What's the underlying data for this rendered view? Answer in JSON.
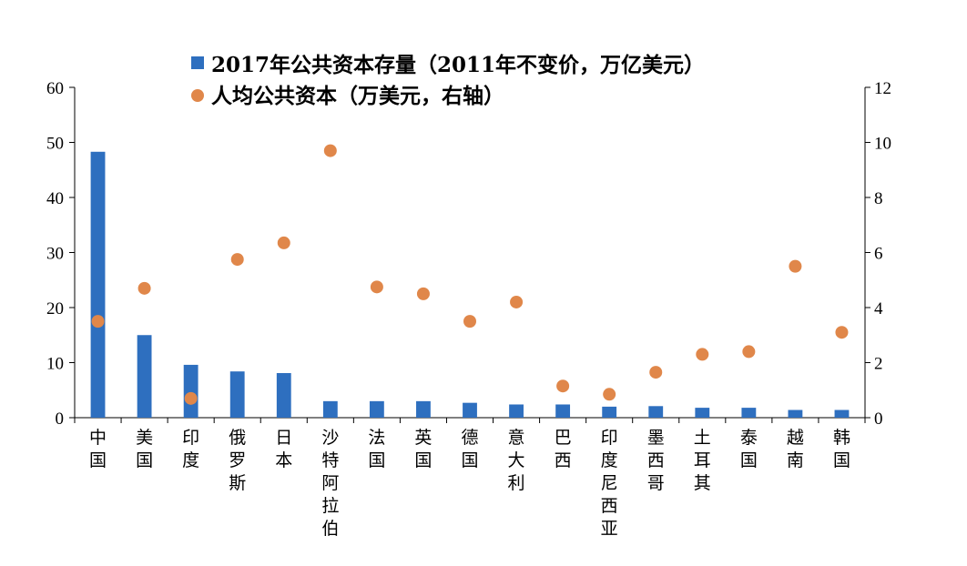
{
  "chart_data": {
    "type": "bar",
    "categories": [
      "中国",
      "美国",
      "印度",
      "俄罗斯",
      "日本",
      "沙特阿拉伯",
      "法国",
      "英国",
      "德国",
      "意大利",
      "巴西",
      "印度尼西亚",
      "墨西哥",
      "土耳其",
      "泰国",
      "越南",
      "韩国"
    ],
    "series": [
      {
        "name": "2017年公共资本存量（2011年不变价，万亿美元）",
        "kind": "bar",
        "axis": "left",
        "color": "#2e6fbf",
        "values": [
          48.3,
          15.0,
          9.6,
          8.4,
          8.1,
          3.0,
          3.0,
          3.0,
          2.7,
          2.4,
          2.4,
          2.0,
          2.1,
          1.8,
          1.8,
          1.4,
          1.4
        ]
      },
      {
        "name": "人均公共资本（万美元，右轴）",
        "kind": "scatter",
        "axis": "right",
        "color": "#e0874a",
        "values": [
          3.5,
          4.7,
          0.7,
          5.75,
          6.35,
          9.7,
          4.75,
          4.5,
          3.5,
          4.2,
          1.15,
          0.85,
          1.65,
          2.3,
          2.4,
          5.5,
          3.1
        ]
      }
    ],
    "y_left": {
      "min": 0,
      "max": 60,
      "ticks": [
        "0",
        "10",
        "20",
        "30",
        "40",
        "50",
        "60"
      ]
    },
    "y_right": {
      "min": 0,
      "max": 12,
      "ticks": [
        "0",
        "2",
        "4",
        "6",
        "8",
        "10",
        "12"
      ]
    },
    "grid": false,
    "legend_position": "top"
  }
}
